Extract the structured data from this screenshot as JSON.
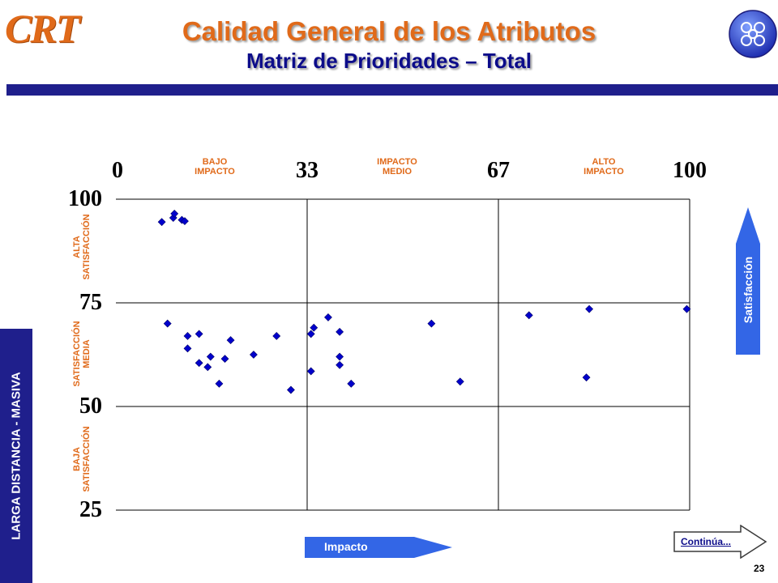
{
  "header": {
    "logo_text": "CRT",
    "title": "Calidad General de los Atributos",
    "subtitle": "Matriz de Prioridades – Total",
    "globe_icon": "globe-people-icon"
  },
  "sidebar": {
    "label": "LARGA DISTANCIA - MASIVA"
  },
  "zones": {
    "bajo_impacto": [
      "BAJO",
      "IMPACTO"
    ],
    "impacto_medio": [
      "IMPACTO",
      "MEDIO"
    ],
    "alto_impacto": [
      "ALTO",
      "IMPACTO"
    ],
    "alta_satisfaccion": [
      "ALTA",
      "SATISFACCIÓN"
    ],
    "satisfaccion_media": [
      "SATISFACCIÓN",
      "MEDIA"
    ],
    "baja_satisfaccion": [
      "BAJA",
      "SATISFACCIÓN"
    ]
  },
  "arrows": {
    "impacto": "Impacto",
    "satisfaccion": "Satisfacción",
    "continua": "Continúa..."
  },
  "page_number": "23",
  "colors": {
    "accent": "#e06a1a",
    "navy": "#1f1f8c",
    "point": "#0000cc",
    "arrow": "#3366e6"
  },
  "chart_data": {
    "type": "scatter",
    "title": "",
    "xlabel": "Impacto",
    "ylabel": "Satisfacción",
    "xlim": [
      0,
      100
    ],
    "ylim": [
      25,
      100
    ],
    "x_ticks": [
      "0",
      "33",
      "67",
      "100"
    ],
    "y_ticks": [
      "100",
      "75",
      "50",
      "25"
    ],
    "grid": "quadrant lines at x=33, x=67, y=50, y=75",
    "points": [
      {
        "x": 8,
        "y": 94.5
      },
      {
        "x": 10,
        "y": 95.5
      },
      {
        "x": 10.2,
        "y": 96.5
      },
      {
        "x": 11.5,
        "y": 95
      },
      {
        "x": 12,
        "y": 94.7
      },
      {
        "x": 9,
        "y": 70
      },
      {
        "x": 12.5,
        "y": 67
      },
      {
        "x": 14.5,
        "y": 67.5
      },
      {
        "x": 12.5,
        "y": 64
      },
      {
        "x": 14.5,
        "y": 60.5
      },
      {
        "x": 16.5,
        "y": 62
      },
      {
        "x": 16,
        "y": 59.5
      },
      {
        "x": 19,
        "y": 61.5
      },
      {
        "x": 18,
        "y": 55.5
      },
      {
        "x": 20,
        "y": 66
      },
      {
        "x": 24,
        "y": 62.5
      },
      {
        "x": 28,
        "y": 67
      },
      {
        "x": 30.5,
        "y": 54
      },
      {
        "x": 34,
        "y": 67.5
      },
      {
        "x": 34.5,
        "y": 69
      },
      {
        "x": 34,
        "y": 58.5
      },
      {
        "x": 37,
        "y": 71.5
      },
      {
        "x": 39,
        "y": 68
      },
      {
        "x": 39,
        "y": 62
      },
      {
        "x": 39,
        "y": 60
      },
      {
        "x": 41,
        "y": 55.5
      },
      {
        "x": 55,
        "y": 70
      },
      {
        "x": 60,
        "y": 56
      },
      {
        "x": 72,
        "y": 72
      },
      {
        "x": 82.5,
        "y": 73.5
      },
      {
        "x": 82,
        "y": 57
      },
      {
        "x": 99.5,
        "y": 73.5
      }
    ]
  }
}
